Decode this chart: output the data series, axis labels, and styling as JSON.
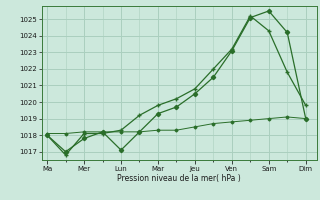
{
  "background_color": "#cce8dc",
  "grid_color": "#aacfbf",
  "line_color": "#2a6e2a",
  "xlabel": "Pression niveau de la mer( hPa )",
  "ylim": [
    1016.5,
    1025.8
  ],
  "yticks": [
    1017,
    1018,
    1019,
    1020,
    1021,
    1022,
    1023,
    1024,
    1025
  ],
  "x_labels": [
    "Ma",
    "Mer",
    "Lun",
    "Mar",
    "Jeu",
    "Ven",
    "Sam",
    "Dim"
  ],
  "x_positions": [
    0,
    1,
    2,
    3,
    4,
    5,
    6,
    7
  ],
  "xlim": [
    -0.15,
    7.3
  ],
  "series1_x": [
    0.0,
    0.5,
    1.0,
    1.5,
    2.0,
    2.5,
    3.0,
    3.5,
    4.0,
    4.5,
    5.0,
    5.5,
    6.0,
    6.5,
    7.0
  ],
  "series1_y": [
    1018.0,
    1017.0,
    1017.8,
    1018.2,
    1017.1,
    1018.2,
    1019.3,
    1019.7,
    1020.5,
    1021.5,
    1023.1,
    1025.1,
    1025.5,
    1024.2,
    1019.0
  ],
  "series2_x": [
    0.0,
    0.5,
    1.0,
    1.5,
    2.0,
    2.5,
    3.0,
    3.5,
    4.0,
    4.5,
    5.0,
    5.5,
    6.0,
    6.5,
    7.0
  ],
  "series2_y": [
    1018.0,
    1016.8,
    1018.1,
    1018.1,
    1018.3,
    1019.2,
    1019.8,
    1020.2,
    1020.8,
    1022.0,
    1023.2,
    1025.2,
    1024.3,
    1021.8,
    1019.8
  ],
  "series3_x": [
    0.0,
    0.5,
    1.0,
    1.5,
    2.0,
    2.5,
    3.0,
    3.5,
    4.0,
    4.5,
    5.0,
    5.5,
    6.0,
    6.5,
    7.0
  ],
  "series3_y": [
    1018.1,
    1018.1,
    1018.2,
    1018.2,
    1018.2,
    1018.2,
    1018.3,
    1018.3,
    1018.5,
    1018.7,
    1018.8,
    1018.9,
    1019.0,
    1019.1,
    1019.0
  ]
}
